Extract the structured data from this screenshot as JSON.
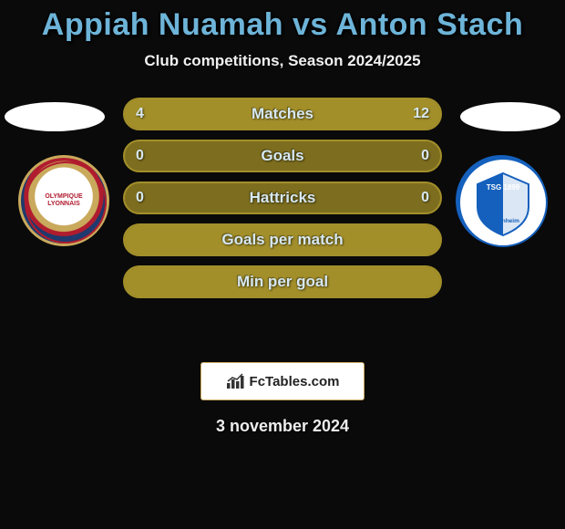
{
  "title": "Appiah Nuamah vs Anton Stach",
  "subtitle": "Club competitions, Season 2024/2025",
  "date": "3 november 2024",
  "footer_brand": "FcTables.com",
  "colors": {
    "background": "#0a0a0a",
    "title_color": "#6db4d8",
    "bar_border": "#a38f2a",
    "bar_bg": "#7d6e1f",
    "bar_fill": "#a38f2a",
    "text_light": "#d7e8f0"
  },
  "player_left": {
    "name": "Appiah Nuamah",
    "club": "Olympique Lyonnais",
    "club_short": "OLYMPIQUE LYONNAIS"
  },
  "player_right": {
    "name": "Anton Stach",
    "club": "TSG 1899 Hoffenheim",
    "club_short": "TSG 1899 Hoffenheim"
  },
  "stats": [
    {
      "label": "Matches",
      "left_val": "4",
      "right_val": "12",
      "left_pct": 25,
      "right_pct": 75
    },
    {
      "label": "Goals",
      "left_val": "0",
      "right_val": "0",
      "left_pct": 0,
      "right_pct": 0
    },
    {
      "label": "Hattricks",
      "left_val": "0",
      "right_val": "0",
      "left_pct": 0,
      "right_pct": 0
    },
    {
      "label": "Goals per match",
      "left_val": "",
      "right_val": "",
      "left_pct": 100,
      "right_pct": 0
    },
    {
      "label": "Min per goal",
      "left_val": "",
      "right_val": "",
      "left_pct": 100,
      "right_pct": 0
    }
  ]
}
